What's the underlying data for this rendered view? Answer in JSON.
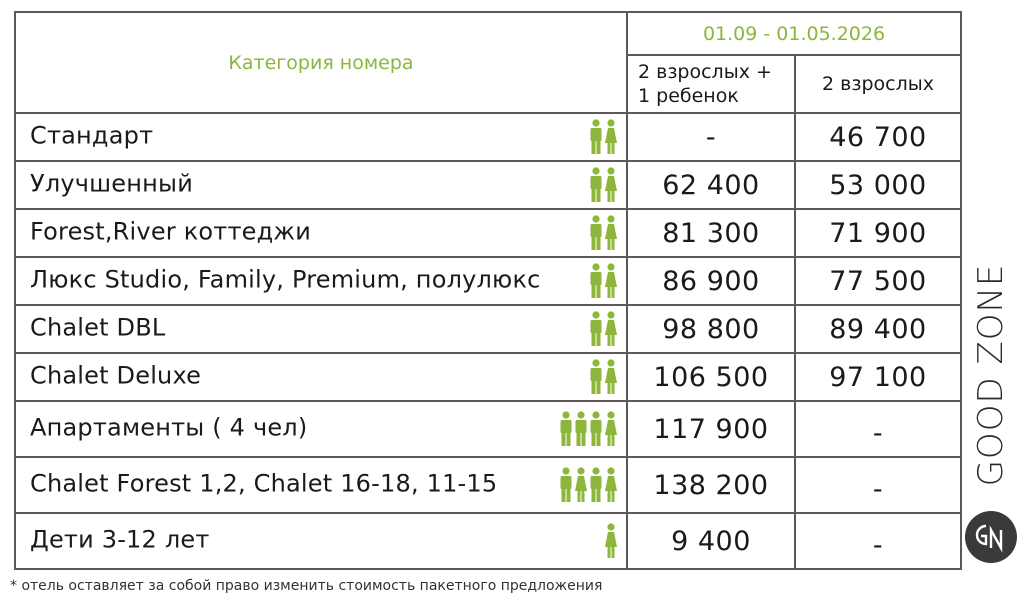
{
  "header": {
    "category_title": "Категория номера",
    "period": "01.09 - 01.05.2026",
    "col_a_line1": "2 взрослых +",
    "col_a_line2": "1 ребенок",
    "col_b": "2 взрослых"
  },
  "rows": [
    {
      "category": "Стандарт",
      "icons": [
        "male",
        "female"
      ],
      "price_a": "-",
      "price_b": "46 700"
    },
    {
      "category": "Улучшенный",
      "icons": [
        "male",
        "female"
      ],
      "price_a": "62 400",
      "price_b": "53 000"
    },
    {
      "category": "Forest,River коттеджи",
      "icons": [
        "male",
        "female"
      ],
      "price_a": "81 300",
      "price_b": "71 900"
    },
    {
      "category": "Люкс Studio, Family, Premium, полулюкс",
      "icons": [
        "male",
        "female"
      ],
      "price_a": "86 900",
      "price_b": "77 500"
    },
    {
      "category": "Chalet DBL",
      "icons": [
        "male",
        "female"
      ],
      "price_a": "98 800",
      "price_b": "89 400"
    },
    {
      "category": "Chalet Deluxe",
      "icons": [
        "male",
        "female"
      ],
      "price_a": "106 500",
      "price_b": "97 100"
    },
    {
      "category": "Апартаменты ( 4 чел)",
      "icons": [
        "male",
        "male",
        "male",
        "female"
      ],
      "price_a": "117 900",
      "price_b": "-"
    },
    {
      "category": "Chalet Forest 1,2, Chalet 16-18, 11-15",
      "icons": [
        "male",
        "female",
        "male",
        "female"
      ],
      "price_a": "138 200",
      "price_b": "-"
    },
    {
      "category": "Дети 3-12 лет",
      "icons": [
        "female"
      ],
      "price_a": "9 400",
      "price_b": "-"
    }
  ],
  "footnote": "* отель оставляет за собой право  изменить стоимость пакетного предложения",
  "brand": {
    "name": "GOOD ZONE"
  },
  "colors": {
    "accent_green": "#8cb63c",
    "border": "#5a5a5a",
    "text": "#1a1a1a",
    "logo_dark": "#3a3a3a"
  },
  "icons": {
    "male": "male-person-icon",
    "female": "female-person-icon",
    "logo": "good-zone-logo-icon"
  }
}
